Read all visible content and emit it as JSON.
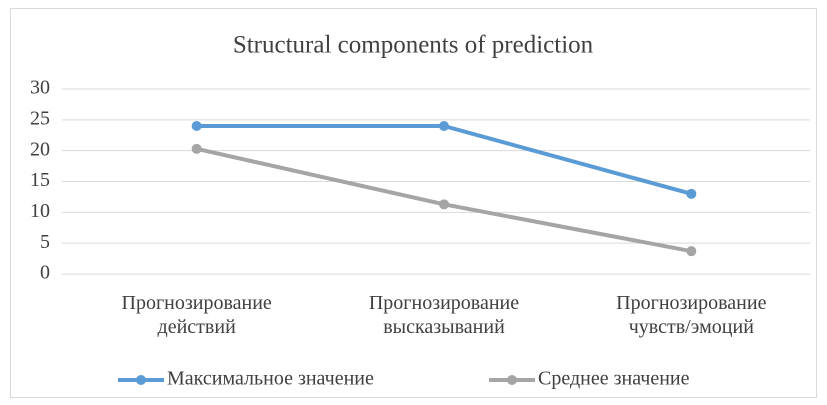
{
  "chart_data": {
    "type": "line",
    "title": "Structural components of prediction",
    "categories": [
      "Прогнозирование действий",
      "Прогнозирование высказываний",
      "Прогнозирование чувств/эмоций"
    ],
    "series": [
      {
        "name": "Максимальное значение",
        "color": "#5b9bd5",
        "values": [
          24,
          24,
          13
        ]
      },
      {
        "name": "Среднее значение",
        "color": "#a5a5a5",
        "values": [
          20.3,
          11.3,
          3.7
        ]
      }
    ],
    "ylim": [
      0,
      30
    ],
    "yticks": [
      0,
      5,
      10,
      15,
      20,
      25,
      30
    ],
    "grid": true,
    "legend": "bottom"
  }
}
